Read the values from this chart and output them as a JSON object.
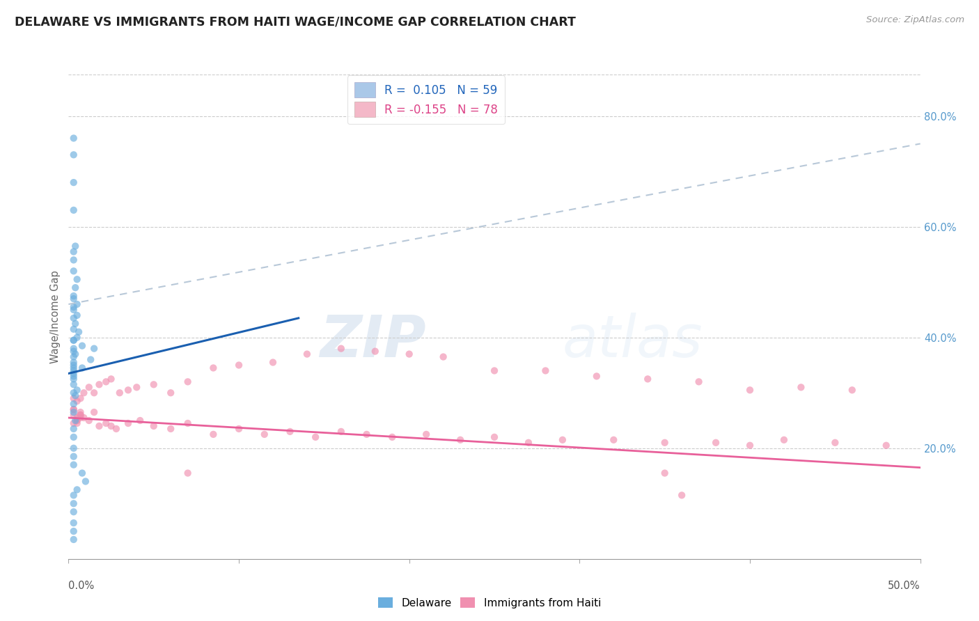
{
  "title": "DELAWARE VS IMMIGRANTS FROM HAITI WAGE/INCOME GAP CORRELATION CHART",
  "source": "Source: ZipAtlas.com",
  "ylabel": "Wage/Income Gap",
  "watermark_zip": "ZIP",
  "watermark_atlas": "atlas",
  "xlim": [
    0.0,
    0.5
  ],
  "ylim": [
    0.0,
    0.875
  ],
  "right_ytick_vals": [
    0.8,
    0.6,
    0.4,
    0.2
  ],
  "right_ytick_labels": [
    "80.0%",
    "60.0%",
    "40.0%",
    "20.0%"
  ],
  "legend_blue_label": "R =  0.105   N = 59",
  "legend_pink_label": "R = -0.155   N = 78",
  "legend_blue_patch_color": "#aac8e8",
  "legend_pink_patch_color": "#f4b8c8",
  "blue_scatter_color": "#6aaede",
  "pink_scatter_color": "#f090b0",
  "blue_line_color": "#1a5fb0",
  "blue_dash_color": "#b8c8d8",
  "pink_line_color": "#e8609a",
  "scatter_size": 55,
  "scatter_alpha": 0.65,
  "blue_line": {
    "x0": 0.0,
    "y0": 0.335,
    "x1": 0.135,
    "y1": 0.435
  },
  "blue_dash_line": {
    "x0": 0.0,
    "y0": 0.46,
    "x1": 0.5,
    "y1": 0.75
  },
  "pink_line": {
    "x0": 0.0,
    "y0": 0.255,
    "x1": 0.5,
    "y1": 0.165
  },
  "blue_scatter_x": [
    0.003,
    0.008,
    0.013,
    0.003,
    0.008,
    0.003,
    0.006,
    0.004,
    0.005,
    0.003,
    0.003,
    0.004,
    0.005,
    0.003,
    0.003,
    0.003,
    0.004,
    0.003,
    0.005,
    0.003,
    0.003,
    0.003,
    0.003,
    0.003,
    0.004,
    0.003,
    0.003,
    0.003,
    0.003,
    0.003,
    0.005,
    0.004,
    0.003,
    0.003,
    0.004,
    0.003,
    0.003,
    0.003,
    0.003,
    0.003,
    0.008,
    0.01,
    0.005,
    0.003,
    0.003,
    0.003,
    0.003,
    0.003,
    0.003,
    0.003,
    0.003,
    0.003,
    0.003,
    0.003,
    0.015,
    0.005,
    0.003,
    0.003,
    0.003
  ],
  "blue_scatter_y": [
    0.33,
    0.345,
    0.36,
    0.375,
    0.385,
    0.395,
    0.41,
    0.425,
    0.44,
    0.455,
    0.47,
    0.49,
    0.505,
    0.52,
    0.54,
    0.555,
    0.565,
    0.475,
    0.46,
    0.45,
    0.435,
    0.415,
    0.395,
    0.38,
    0.37,
    0.355,
    0.345,
    0.335,
    0.325,
    0.315,
    0.305,
    0.295,
    0.28,
    0.265,
    0.25,
    0.235,
    0.22,
    0.2,
    0.185,
    0.17,
    0.155,
    0.14,
    0.125,
    0.115,
    0.1,
    0.085,
    0.065,
    0.05,
    0.035,
    0.3,
    0.63,
    0.68,
    0.73,
    0.76,
    0.38,
    0.4,
    0.365,
    0.35,
    0.34
  ],
  "pink_scatter_x": [
    0.003,
    0.005,
    0.007,
    0.003,
    0.005,
    0.007,
    0.003,
    0.005,
    0.007,
    0.003,
    0.005,
    0.007,
    0.009,
    0.012,
    0.015,
    0.018,
    0.022,
    0.025,
    0.028,
    0.035,
    0.042,
    0.05,
    0.06,
    0.07,
    0.085,
    0.1,
    0.115,
    0.13,
    0.145,
    0.16,
    0.175,
    0.19,
    0.21,
    0.23,
    0.25,
    0.27,
    0.29,
    0.32,
    0.35,
    0.38,
    0.4,
    0.42,
    0.45,
    0.48,
    0.003,
    0.005,
    0.007,
    0.009,
    0.012,
    0.015,
    0.018,
    0.022,
    0.025,
    0.03,
    0.035,
    0.04,
    0.05,
    0.06,
    0.07,
    0.085,
    0.1,
    0.12,
    0.14,
    0.16,
    0.18,
    0.2,
    0.22,
    0.25,
    0.28,
    0.31,
    0.34,
    0.37,
    0.4,
    0.43,
    0.46,
    0.07,
    0.35,
    0.36
  ],
  "pink_scatter_y": [
    0.245,
    0.25,
    0.26,
    0.27,
    0.255,
    0.265,
    0.26,
    0.25,
    0.255,
    0.27,
    0.245,
    0.26,
    0.255,
    0.25,
    0.265,
    0.24,
    0.245,
    0.24,
    0.235,
    0.245,
    0.25,
    0.24,
    0.235,
    0.245,
    0.225,
    0.235,
    0.225,
    0.23,
    0.22,
    0.23,
    0.225,
    0.22,
    0.225,
    0.215,
    0.22,
    0.21,
    0.215,
    0.215,
    0.21,
    0.21,
    0.205,
    0.215,
    0.21,
    0.205,
    0.29,
    0.285,
    0.29,
    0.3,
    0.31,
    0.3,
    0.315,
    0.32,
    0.325,
    0.3,
    0.305,
    0.31,
    0.315,
    0.3,
    0.32,
    0.345,
    0.35,
    0.355,
    0.37,
    0.38,
    0.375,
    0.37,
    0.365,
    0.34,
    0.34,
    0.33,
    0.325,
    0.32,
    0.305,
    0.31,
    0.305,
    0.155,
    0.155,
    0.115
  ]
}
